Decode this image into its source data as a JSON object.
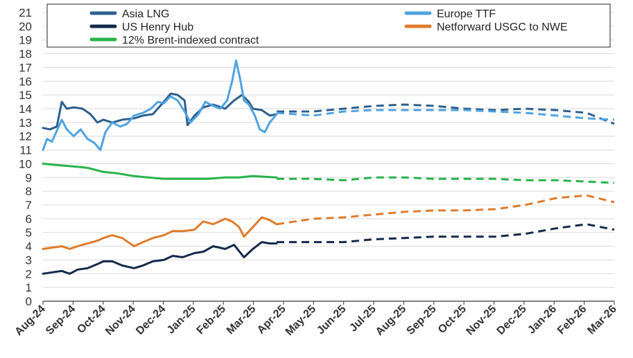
{
  "chart_data": {
    "type": "line",
    "title": "",
    "xlabel": "",
    "ylabel": "",
    "ylim": [
      0,
      21
    ],
    "y_ticks": [
      0,
      1,
      2,
      3,
      4,
      5,
      6,
      7,
      8,
      9,
      10,
      11,
      12,
      13,
      14,
      15,
      16,
      17,
      18,
      19,
      20,
      21
    ],
    "x_range": [
      "2024-08-01",
      "2026-03-01"
    ],
    "x_tick_labels": [
      "Aug-24",
      "Sep-24",
      "Oct-24",
      "Nov-24",
      "Dec-24",
      "Jan-25",
      "Feb-25",
      "Mar-25",
      "Apr-25",
      "May-25",
      "Jun-25",
      "Jul-25",
      "Aug-25",
      "Sep-25",
      "Oct-25",
      "Nov-25",
      "Dec-25",
      "Jan-26",
      "Feb-26",
      "Mar-26"
    ],
    "grid": "horizontal",
    "legend_position": "top",
    "legend": [
      {
        "name": "Asia LNG",
        "color": "#2e5f8e"
      },
      {
        "name": "Europe TTF",
        "color": "#4fa3e0"
      },
      {
        "name": "US Henry Hub",
        "color": "#13294b"
      },
      {
        "name": "Netforward USGC to NWE",
        "color": "#e07b2c"
      },
      {
        "name": "12% Brent-indexed contract",
        "color": "#27b24a"
      }
    ],
    "series": [
      {
        "name": "Asia LNG",
        "color": "#2e5f8e",
        "historical": [
          [
            "2024-08-01",
            12.6
          ],
          [
            "2024-08-08",
            12.5
          ],
          [
            "2024-08-15",
            12.7
          ],
          [
            "2024-08-20",
            14.5
          ],
          [
            "2024-08-25",
            14.0
          ],
          [
            "2024-09-01",
            14.1
          ],
          [
            "2024-09-10",
            14.0
          ],
          [
            "2024-09-18",
            13.6
          ],
          [
            "2024-09-25",
            13.0
          ],
          [
            "2024-10-01",
            13.2
          ],
          [
            "2024-10-10",
            13.0
          ],
          [
            "2024-10-20",
            13.2
          ],
          [
            "2024-11-01",
            13.3
          ],
          [
            "2024-11-10",
            13.5
          ],
          [
            "2024-11-20",
            13.6
          ],
          [
            "2024-12-01",
            14.5
          ],
          [
            "2024-12-08",
            15.1
          ],
          [
            "2024-12-15",
            15.0
          ],
          [
            "2024-12-22",
            14.6
          ],
          [
            "2024-12-25",
            12.8
          ],
          [
            "2025-01-01",
            13.5
          ],
          [
            "2025-01-10",
            14.1
          ],
          [
            "2025-01-20",
            14.3
          ],
          [
            "2025-02-01",
            14.0
          ],
          [
            "2025-02-10",
            14.6
          ],
          [
            "2025-02-18",
            15.0
          ],
          [
            "2025-02-25",
            14.5
          ],
          [
            "2025-03-01",
            14.0
          ],
          [
            "2025-03-10",
            13.9
          ],
          [
            "2025-03-18",
            13.5
          ],
          [
            "2025-03-25",
            13.6
          ]
        ],
        "forward": [
          [
            "2025-03-25",
            13.8
          ],
          [
            "2025-05-01",
            13.8
          ],
          [
            "2025-06-01",
            14.0
          ],
          [
            "2025-07-01",
            14.2
          ],
          [
            "2025-08-01",
            14.3
          ],
          [
            "2025-09-01",
            14.2
          ],
          [
            "2025-10-01",
            14.0
          ],
          [
            "2025-11-01",
            13.9
          ],
          [
            "2025-12-01",
            14.0
          ],
          [
            "2026-01-01",
            13.9
          ],
          [
            "2026-02-01",
            13.7
          ],
          [
            "2026-03-01",
            12.9
          ]
        ]
      },
      {
        "name": "Europe TTF",
        "color": "#4fa3e0",
        "historical": [
          [
            "2024-08-01",
            11.0
          ],
          [
            "2024-08-05",
            11.8
          ],
          [
            "2024-08-10",
            11.6
          ],
          [
            "2024-08-15",
            12.4
          ],
          [
            "2024-08-20",
            13.2
          ],
          [
            "2024-08-25",
            12.5
          ],
          [
            "2024-09-01",
            12.0
          ],
          [
            "2024-09-08",
            12.5
          ],
          [
            "2024-09-15",
            11.8
          ],
          [
            "2024-09-22",
            11.5
          ],
          [
            "2024-09-28",
            11.0
          ],
          [
            "2024-10-03",
            12.3
          ],
          [
            "2024-10-10",
            13.0
          ],
          [
            "2024-10-18",
            12.7
          ],
          [
            "2024-10-25",
            12.9
          ],
          [
            "2024-11-01",
            13.5
          ],
          [
            "2024-11-10",
            13.7
          ],
          [
            "2024-11-18",
            14.0
          ],
          [
            "2024-11-25",
            14.5
          ],
          [
            "2024-12-01",
            14.4
          ],
          [
            "2024-12-08",
            14.9
          ],
          [
            "2024-12-15",
            14.6
          ],
          [
            "2024-12-22",
            13.8
          ],
          [
            "2024-12-28",
            13.0
          ],
          [
            "2025-01-05",
            13.6
          ],
          [
            "2025-01-12",
            14.5
          ],
          [
            "2025-01-20",
            14.2
          ],
          [
            "2025-01-27",
            14.0
          ],
          [
            "2025-02-03",
            14.6
          ],
          [
            "2025-02-08",
            16.0
          ],
          [
            "2025-02-12",
            17.5
          ],
          [
            "2025-02-16",
            16.2
          ],
          [
            "2025-02-20",
            14.6
          ],
          [
            "2025-02-25",
            14.3
          ],
          [
            "2025-03-03",
            13.5
          ],
          [
            "2025-03-08",
            12.5
          ],
          [
            "2025-03-13",
            12.3
          ],
          [
            "2025-03-18",
            13.0
          ],
          [
            "2025-03-25",
            13.6
          ]
        ],
        "forward": [
          [
            "2025-03-25",
            13.7
          ],
          [
            "2025-05-01",
            13.5
          ],
          [
            "2025-06-01",
            13.8
          ],
          [
            "2025-07-01",
            13.9
          ],
          [
            "2025-08-01",
            13.9
          ],
          [
            "2025-09-01",
            13.9
          ],
          [
            "2025-10-01",
            13.9
          ],
          [
            "2025-11-01",
            13.8
          ],
          [
            "2025-12-01",
            13.7
          ],
          [
            "2026-01-01",
            13.5
          ],
          [
            "2026-02-01",
            13.3
          ],
          [
            "2026-03-01",
            13.2
          ]
        ]
      },
      {
        "name": "US Henry Hub",
        "color": "#13294b",
        "historical": [
          [
            "2024-08-01",
            2.0
          ],
          [
            "2024-08-10",
            2.1
          ],
          [
            "2024-08-20",
            2.2
          ],
          [
            "2024-08-28",
            2.0
          ],
          [
            "2024-09-05",
            2.3
          ],
          [
            "2024-09-15",
            2.4
          ],
          [
            "2024-09-25",
            2.7
          ],
          [
            "2024-10-01",
            2.9
          ],
          [
            "2024-10-10",
            2.9
          ],
          [
            "2024-10-20",
            2.6
          ],
          [
            "2024-11-01",
            2.4
          ],
          [
            "2024-11-10",
            2.6
          ],
          [
            "2024-11-20",
            2.9
          ],
          [
            "2024-12-01",
            3.0
          ],
          [
            "2024-12-10",
            3.3
          ],
          [
            "2024-12-20",
            3.2
          ],
          [
            "2025-01-01",
            3.5
          ],
          [
            "2025-01-10",
            3.6
          ],
          [
            "2025-01-20",
            4.0
          ],
          [
            "2025-02-01",
            3.8
          ],
          [
            "2025-02-10",
            4.1
          ],
          [
            "2025-02-20",
            3.2
          ],
          [
            "2025-03-01",
            3.8
          ],
          [
            "2025-03-10",
            4.3
          ],
          [
            "2025-03-18",
            4.2
          ],
          [
            "2025-03-25",
            4.2
          ]
        ],
        "forward": [
          [
            "2025-03-25",
            4.3
          ],
          [
            "2025-05-01",
            4.3
          ],
          [
            "2025-06-01",
            4.3
          ],
          [
            "2025-07-01",
            4.5
          ],
          [
            "2025-08-01",
            4.6
          ],
          [
            "2025-09-01",
            4.7
          ],
          [
            "2025-10-01",
            4.7
          ],
          [
            "2025-11-01",
            4.7
          ],
          [
            "2025-12-01",
            4.9
          ],
          [
            "2026-01-01",
            5.3
          ],
          [
            "2026-02-01",
            5.6
          ],
          [
            "2026-03-01",
            5.2
          ]
        ]
      },
      {
        "name": "Netforward USGC to NWE",
        "color": "#e07b2c",
        "historical": [
          [
            "2024-08-01",
            3.8
          ],
          [
            "2024-08-10",
            3.9
          ],
          [
            "2024-08-20",
            4.0
          ],
          [
            "2024-08-28",
            3.8
          ],
          [
            "2024-09-05",
            4.0
          ],
          [
            "2024-09-15",
            4.2
          ],
          [
            "2024-09-25",
            4.4
          ],
          [
            "2024-10-01",
            4.6
          ],
          [
            "2024-10-10",
            4.8
          ],
          [
            "2024-10-20",
            4.6
          ],
          [
            "2024-11-01",
            4.0
          ],
          [
            "2024-11-10",
            4.3
          ],
          [
            "2024-11-20",
            4.6
          ],
          [
            "2024-12-01",
            4.8
          ],
          [
            "2024-12-10",
            5.1
          ],
          [
            "2024-12-20",
            5.1
          ],
          [
            "2025-01-01",
            5.2
          ],
          [
            "2025-01-10",
            5.8
          ],
          [
            "2025-01-20",
            5.6
          ],
          [
            "2025-02-01",
            6.0
          ],
          [
            "2025-02-08",
            5.8
          ],
          [
            "2025-02-15",
            5.4
          ],
          [
            "2025-02-20",
            4.7
          ],
          [
            "2025-03-01",
            5.4
          ],
          [
            "2025-03-10",
            6.1
          ],
          [
            "2025-03-18",
            5.9
          ],
          [
            "2025-03-25",
            5.6
          ]
        ],
        "forward": [
          [
            "2025-03-25",
            5.6
          ],
          [
            "2025-05-01",
            6.0
          ],
          [
            "2025-06-01",
            6.1
          ],
          [
            "2025-07-01",
            6.3
          ],
          [
            "2025-08-01",
            6.5
          ],
          [
            "2025-09-01",
            6.6
          ],
          [
            "2025-10-01",
            6.6
          ],
          [
            "2025-11-01",
            6.7
          ],
          [
            "2025-12-01",
            7.0
          ],
          [
            "2026-01-01",
            7.5
          ],
          [
            "2026-02-01",
            7.7
          ],
          [
            "2026-03-01",
            7.2
          ]
        ]
      },
      {
        "name": "12% Brent-indexed contract",
        "color": "#27b24a",
        "historical": [
          [
            "2024-08-01",
            10.0
          ],
          [
            "2024-08-15",
            9.9
          ],
          [
            "2024-09-01",
            9.8
          ],
          [
            "2024-09-15",
            9.7
          ],
          [
            "2024-10-01",
            9.4
          ],
          [
            "2024-10-15",
            9.3
          ],
          [
            "2024-11-01",
            9.1
          ],
          [
            "2024-11-15",
            9.0
          ],
          [
            "2024-12-01",
            8.9
          ],
          [
            "2024-12-15",
            8.9
          ],
          [
            "2025-01-01",
            8.9
          ],
          [
            "2025-01-15",
            8.9
          ],
          [
            "2025-02-01",
            9.0
          ],
          [
            "2025-02-15",
            9.0
          ],
          [
            "2025-03-01",
            9.1
          ],
          [
            "2025-03-25",
            9.0
          ]
        ],
        "forward": [
          [
            "2025-03-25",
            8.9
          ],
          [
            "2025-05-01",
            8.9
          ],
          [
            "2025-06-01",
            8.8
          ],
          [
            "2025-07-01",
            9.0
          ],
          [
            "2025-08-01",
            9.0
          ],
          [
            "2025-09-01",
            8.9
          ],
          [
            "2025-10-01",
            8.9
          ],
          [
            "2025-11-01",
            8.9
          ],
          [
            "2025-12-01",
            8.8
          ],
          [
            "2026-01-01",
            8.8
          ],
          [
            "2026-02-01",
            8.7
          ],
          [
            "2026-03-01",
            8.6
          ]
        ]
      }
    ]
  }
}
